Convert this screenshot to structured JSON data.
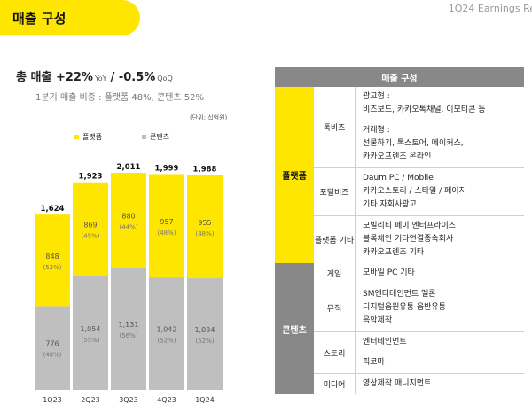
{
  "header": {
    "title": "매출 구성",
    "report_label": "1Q24 Earnings Re"
  },
  "summary": {
    "label": "총 매출",
    "yoy_value": "+22%",
    "yoy_label": "YoY",
    "separator": "/",
    "qoq_value": "-0.5%",
    "qoq_label": "QoQ",
    "subtitle": "1분기 매출 비중 : 플랫폼 48%, 콘텐츠 52%",
    "unit": "(단위: 십억원)"
  },
  "colors": {
    "platform": "#ffe600",
    "content": "#bfbfbf",
    "content_header": "#888888"
  },
  "chart_data": {
    "type": "bar",
    "stacked": true,
    "title": "",
    "categories": [
      "1Q23",
      "2Q23",
      "3Q23",
      "4Q23",
      "1Q24"
    ],
    "series": [
      {
        "name": "콘텐츠",
        "values": [
          776,
          1054,
          1131,
          1042,
          1034
        ],
        "shares": [
          "(48%)",
          "(55%)",
          "(56%)",
          "(52%)",
          "(52%)"
        ]
      },
      {
        "name": "플랫폼",
        "values": [
          848,
          869,
          880,
          957,
          955
        ],
        "shares": [
          "(52%)",
          "(45%)",
          "(44%)",
          "(48%)",
          "(48%)"
        ]
      }
    ],
    "totals": [
      1624,
      1923,
      2011,
      1999,
      1988
    ],
    "legend": [
      "플랫폼",
      "콘텐츠"
    ],
    "legend_position": "top-left",
    "ylim": [
      0,
      2011
    ],
    "xlabel": "",
    "ylabel": ""
  },
  "table": {
    "header": "매출 구성",
    "groups": [
      {
        "name": "플랫폼",
        "rows": [
          {
            "sub": "톡비즈",
            "lines": [
              "광고형 :",
              "비즈보드, 카카오톡채널, 이모티콘 등",
              "",
              "거래형 :",
              "선물하기, 톡스토어, 메이커스,",
              "카카오프렌즈 온라인"
            ]
          },
          {
            "sub": "포털비즈",
            "lines": [
              "Daum PC / Mobile",
              "카카오스토리 / 스타일 / 페이지",
              "기타 자회사광고"
            ]
          },
          {
            "sub": "플랫폼 기타",
            "lines": [
              "모빌리티     페이    엔터프라이즈",
              "블록체인     기타연결종속회사",
              "카카오프렌즈 기타"
            ]
          }
        ]
      },
      {
        "name": "콘텐츠",
        "rows": [
          {
            "sub": "게임",
            "lines": [
              "모바일     PC     기타"
            ]
          },
          {
            "sub": "뮤직",
            "lines": [
              "SM엔터테인먼트     멜론",
              "디지털음원유통     음반유통",
              "음악제작"
            ]
          },
          {
            "sub": "스토리",
            "lines": [
              "엔터테인먼트",
              "",
              "픽코마"
            ]
          },
          {
            "sub": "미디어",
            "lines": [
              "영상제작     매니지먼트"
            ]
          }
        ]
      }
    ]
  }
}
